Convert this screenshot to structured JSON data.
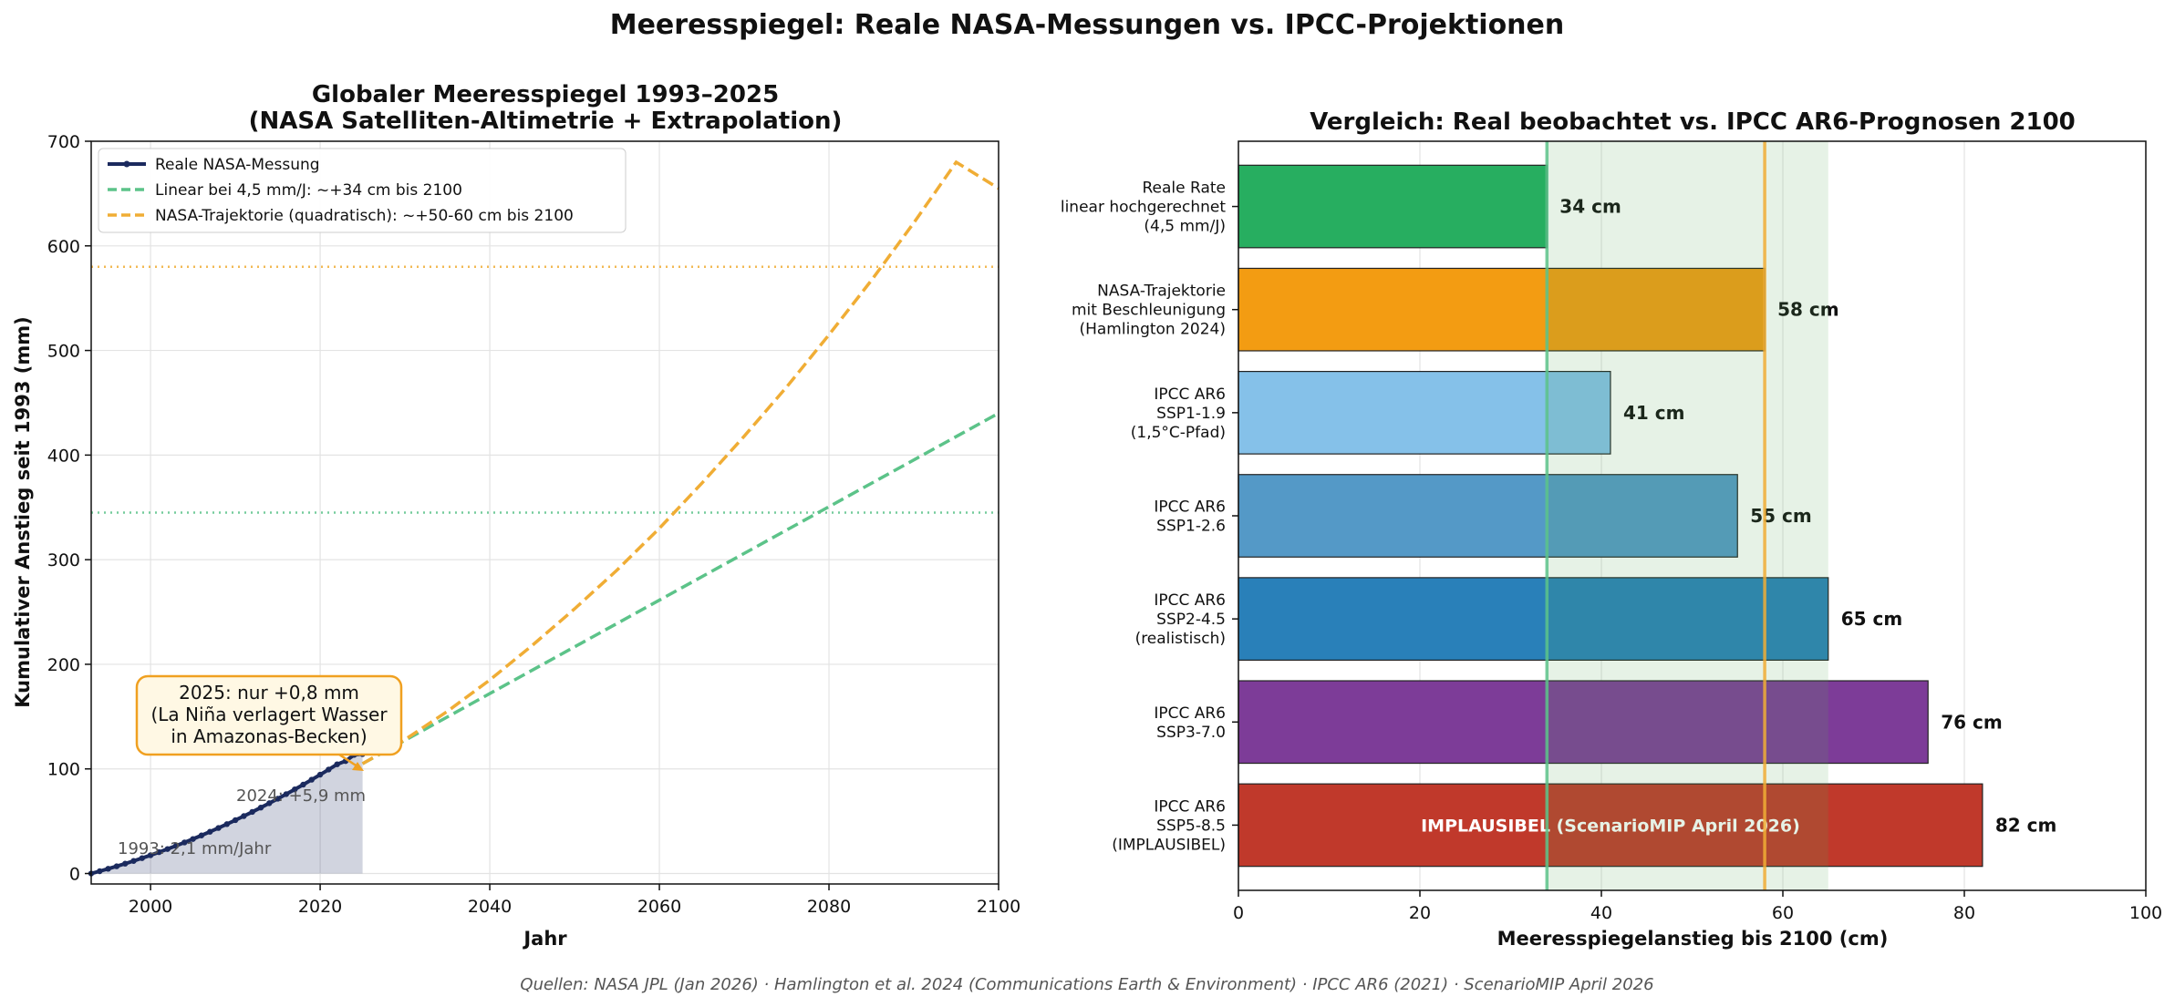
{
  "figure": {
    "suptitle": "Meeresspiegel: Reale NASA-Messungen vs. IPCC-Projektionen",
    "source": "Quellen: NASA JPL (Jan 2026) · Hamlington et al. 2024 (Communications Earth & Environment) · IPCC AR6 (2021) · ScenarioMIP April 2026"
  },
  "chart_data": [
    {
      "type": "line",
      "title_line1": "Globaler Meeresspiegel 1993–2025",
      "title_line2": "(NASA Satelliten-Altimetrie + Extrapolation)",
      "xlabel": "Jahr",
      "ylabel": "Kumulativer Anstieg seit 1993 (mm)",
      "xlim": [
        1993,
        2100
      ],
      "ylim": [
        -10,
        700
      ],
      "xticks": [
        2000,
        2020,
        2040,
        2060,
        2080,
        2100
      ],
      "yticks": [
        0,
        100,
        200,
        300,
        400,
        500,
        600,
        700
      ],
      "grid": true,
      "legend_position": "top-left",
      "series": [
        {
          "name": "Reale NASA-Messung",
          "color": "#1b2a5e",
          "style": "solid-with-markers",
          "x": [
            1993,
            1994,
            1995,
            1996,
            1997,
            1998,
            1999,
            2000,
            2001,
            2002,
            2003,
            2004,
            2005,
            2006,
            2007,
            2008,
            2009,
            2010,
            2011,
            2012,
            2013,
            2014,
            2015,
            2016,
            2017,
            2018,
            2019,
            2020,
            2021,
            2022,
            2023,
            2024,
            2025
          ],
          "y": [
            0,
            2.2,
            4.5,
            6.9,
            9.4,
            12,
            14.7,
            17.5,
            20.4,
            23.4,
            26.5,
            29.7,
            33,
            36.4,
            39.9,
            43.5,
            47.2,
            51,
            54.9,
            58.9,
            63,
            67.2,
            71.5,
            75.9,
            80.4,
            85,
            89.7,
            94.5,
            99.4,
            104.4,
            107.5,
            113.4,
            114.2
          ]
        },
        {
          "name": "Linear bei 4,5 mm/J: ~+34 cm bis 2100",
          "color": "#5cc389",
          "style": "dashed",
          "x": [
            2025,
            2100
          ],
          "y": [
            105,
            440
          ]
        },
        {
          "name": "NASA-Trajektorie (quadratisch): ~+50-60 cm bis 2100",
          "color": "#f0ad35",
          "style": "dashed",
          "x": [
            2025,
            2030,
            2035,
            2040,
            2045,
            2050,
            2055,
            2060,
            2065,
            2070,
            2075,
            2080,
            2085,
            2090,
            2095,
            2100
          ],
          "y": [
            105,
            128,
            155,
            185,
            218,
            253,
            290,
            330,
            373,
            418,
            465,
            515,
            567,
            622,
            680,
            655
          ]
        }
      ],
      "reference_lines": [
        {
          "y": 345,
          "color": "#5cc389",
          "style": "dotted"
        },
        {
          "y": 580,
          "color": "#f0ad35",
          "style": "dotted"
        }
      ],
      "annotations": {
        "box_lines": [
          "2025: nur +0,8 mm",
          "(La Niña verlagert Wasser",
          "in Amazonas-Becken)"
        ],
        "box_color": "#f0a020",
        "label_2024": "2024: +5,9 mm",
        "label_1993": "1993: 2,1 mm/Jahr"
      }
    },
    {
      "type": "bar",
      "orientation": "horizontal",
      "title": "Vergleich: Real beobachtet vs. IPCC AR6-Prognosen 2100",
      "xlabel": "Meeresspiegelanstieg bis 2100 (cm)",
      "xlim": [
        0,
        100
      ],
      "xticks": [
        0,
        20,
        40,
        60,
        80,
        100
      ],
      "grid": true,
      "shaded_range": [
        34,
        65
      ],
      "shaded_color": "#5aa85a",
      "vlines": [
        {
          "x": 34,
          "color": "#5cc389"
        },
        {
          "x": 58,
          "color": "#f0ad35"
        }
      ],
      "bars": [
        {
          "label_lines": [
            "Reale Rate",
            "linear hochgerechnet",
            "(4,5 mm/J)"
          ],
          "value": 34,
          "value_label": "34 cm",
          "color": "#27ae60"
        },
        {
          "label_lines": [
            "NASA-Trajektorie",
            "mit Beschleunigung",
            "(Hamlington 2024)"
          ],
          "value": 58,
          "value_label": "58 cm",
          "color": "#f39c12"
        },
        {
          "label_lines": [
            "IPCC AR6",
            "SSP1-1.9",
            "(1,5°C-Pfad)"
          ],
          "value": 41,
          "value_label": "41 cm",
          "color": "#85c1e9"
        },
        {
          "label_lines": [
            "IPCC AR6",
            "SSP1-2.6"
          ],
          "value": 55,
          "value_label": "55 cm",
          "color": "#5499c7"
        },
        {
          "label_lines": [
            "IPCC AR6",
            "SSP2-4.5",
            "(realistisch)"
          ],
          "value": 65,
          "value_label": "65 cm",
          "color": "#2980b9"
        },
        {
          "label_lines": [
            "IPCC AR6",
            "SSP3-7.0"
          ],
          "value": 76,
          "value_label": "76 cm",
          "color": "#7d3c98"
        },
        {
          "label_lines": [
            "IPCC AR6",
            "SSP5-8.5",
            "(IMPLAUSIBEL)"
          ],
          "value": 82,
          "value_label": "82 cm",
          "color": "#c0392b",
          "inner_text": "IMPLAUSIBEL (ScenarioMIP April 2026)"
        }
      ]
    }
  ]
}
